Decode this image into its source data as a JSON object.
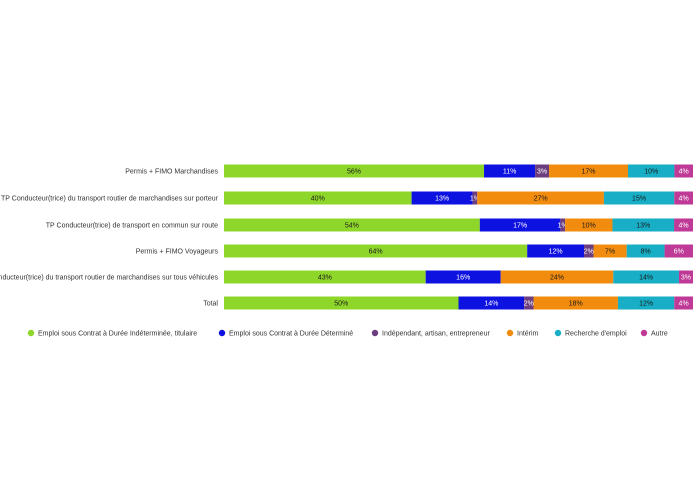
{
  "chart_data": {
    "type": "bar",
    "orientation": "horizontal",
    "stacked": true,
    "grid": false,
    "legend_position": "bottom",
    "title": "",
    "xlabel": "",
    "ylabel": "",
    "xlim": [
      0,
      100
    ],
    "value_format": "percent",
    "categories": [
      "Permis + FIMO Marchandises",
      "TP Conducteur(trice) du transport routier de marchandises sur porteur",
      "TP Conducteur(trice) de transport en commun sur route",
      "Permis + FIMO Voyageurs",
      "TP Conducteur(trice) du transport routier de marchandises sur tous véhicules",
      "Total"
    ],
    "series": [
      {
        "name": "Emploi sous Contrat à Durée Indéterminée, titulaire",
        "color": "#8fd62b",
        "label_color": "#1a1a1a",
        "values": [
          56,
          40,
          54,
          64,
          43,
          50
        ]
      },
      {
        "name": "Emploi sous Contrat à Durée Déterminé",
        "color": "#0e12e0",
        "label_color": "#ffffff",
        "values": [
          11,
          13,
          17,
          12,
          16,
          14
        ]
      },
      {
        "name": "Indépendant, artisan, entrepreneur",
        "color": "#6b3d7e",
        "label_color": "#ffffff",
        "values": [
          3,
          1,
          1,
          2,
          0,
          2
        ]
      },
      {
        "name": "Intérim",
        "color": "#f28c0e",
        "label_color": "#1a1a1a",
        "values": [
          17,
          27,
          10,
          7,
          24,
          18
        ]
      },
      {
        "name": "Recherche d'emploi",
        "color": "#17aec6",
        "label_color": "#1a1a1a",
        "values": [
          10,
          15,
          13,
          8,
          14,
          12
        ]
      },
      {
        "name": "Autre",
        "color": "#bf3a97",
        "label_color": "#ffffff",
        "values": [
          4,
          4,
          4,
          6,
          3,
          4
        ]
      }
    ]
  }
}
